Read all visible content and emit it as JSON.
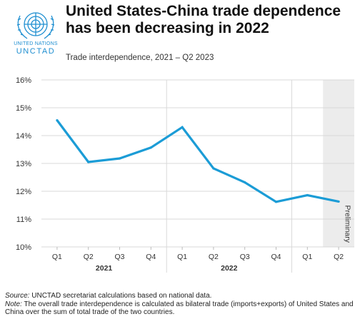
{
  "header": {
    "title": "United States-China trade dependence has been decreasing in 2022",
    "subtitle": "Trade interdependence, 2021 – Q2 2023",
    "logo_line1": "UNITED NATIONS",
    "logo_line2": "UNCTAD"
  },
  "footnote": {
    "source_label": "Source:",
    "source_text": " UNCTAD secretariat calculations based on national data.",
    "note_label": "Note:",
    "note_text": " The overall trade interdependence is calculated as bilateral trade (imports+exports) of United States and China over the sum of total trade of the two countries."
  },
  "colors": {
    "line": "#1b9cd6",
    "shade": "#ececec",
    "grid": "#d9d9d9"
  },
  "chart_data": {
    "type": "line",
    "categories": [
      "Q1",
      "Q2",
      "Q3",
      "Q4",
      "Q1",
      "Q2",
      "Q3",
      "Q4",
      "Q1",
      "Q2"
    ],
    "groups": [
      {
        "label": "2021",
        "start": 0,
        "end": 3
      },
      {
        "label": "2022",
        "start": 4,
        "end": 7
      }
    ],
    "values": [
      14.55,
      13.05,
      13.18,
      13.57,
      14.3,
      12.82,
      12.32,
      11.62,
      11.86,
      11.63
    ],
    "ylim": [
      10,
      16
    ],
    "yticks": [
      10,
      11,
      12,
      13,
      14,
      15,
      16
    ],
    "ytick_labels": [
      "10%",
      "11%",
      "12%",
      "13%",
      "14%",
      "15%",
      "16%"
    ],
    "shaded_from_index": 9,
    "shaded_label": "Preliminary",
    "grid": true
  }
}
